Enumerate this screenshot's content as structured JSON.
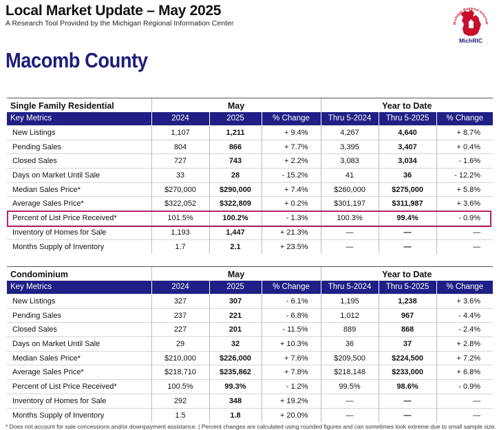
{
  "header": {
    "title": "Local Market Update – May 2025",
    "subtitle": "A Research Tool Provided by the Michigan Regional Information Center",
    "logo_text": "MichRIC",
    "logo_ring_text": "Michigan Regional Information Center"
  },
  "county": "Macomb County",
  "colors": {
    "header_blue": "#1f1f86",
    "county_blue": "#1d1d7a",
    "logo_red": "#c8102e",
    "highlight": "#b8226a"
  },
  "sfr": {
    "title": "Single Family Residential",
    "group_may": "May",
    "group_ytd": "Year to Date",
    "columns": [
      "Key Metrics",
      "2024",
      "2025",
      "% Change",
      "Thru 5-2024",
      "Thru 5-2025",
      "% Change"
    ],
    "rows": [
      [
        "New Listings",
        "1,107",
        "1,211",
        "+ 9.4%",
        "4,267",
        "4,640",
        "+ 8.7%"
      ],
      [
        "Pending Sales",
        "804",
        "866",
        "+ 7.7%",
        "3,395",
        "3,407",
        "+ 0.4%"
      ],
      [
        "Closed Sales",
        "727",
        "743",
        "+ 2.2%",
        "3,083",
        "3,034",
        "- 1.6%"
      ],
      [
        "Days on Market Until Sale",
        "33",
        "28",
        "- 15.2%",
        "41",
        "36",
        "- 12.2%"
      ],
      [
        "Median Sales Price*",
        "$270,000",
        "$290,000",
        "+ 7.4%",
        "$260,000",
        "$275,000",
        "+ 5.8%"
      ],
      [
        "Average Sales Price*",
        "$322,052",
        "$322,809",
        "+ 0.2%",
        "$301,197",
        "$311,987",
        "+ 3.6%"
      ],
      [
        "Percent of List Price Received*",
        "101.5%",
        "100.2%",
        "- 1.3%",
        "100.3%",
        "99.4%",
        "- 0.9%"
      ],
      [
        "Inventory of Homes for Sale",
        "1,193",
        "1,447",
        "+ 21.3%",
        "—",
        "—",
        "—"
      ],
      [
        "Months Supply of Inventory",
        "1.7",
        "2.1",
        "+ 23.5%",
        "—",
        "—",
        "—"
      ]
    ]
  },
  "condo": {
    "title": "Condominium",
    "group_may": "May",
    "group_ytd": "Year to Date",
    "columns": [
      "Key Metrics",
      "2024",
      "2025",
      "% Change",
      "Thru 5-2024",
      "Thru 5-2025",
      "% Change"
    ],
    "rows": [
      [
        "New Listings",
        "327",
        "307",
        "- 6.1%",
        "1,195",
        "1,238",
        "+ 3.6%"
      ],
      [
        "Pending Sales",
        "237",
        "221",
        "- 6.8%",
        "1,012",
        "967",
        "- 4.4%"
      ],
      [
        "Closed Sales",
        "227",
        "201",
        "- 11.5%",
        "889",
        "868",
        "- 2.4%"
      ],
      [
        "Days on Market Until Sale",
        "29",
        "32",
        "+ 10.3%",
        "36",
        "37",
        "+ 2.8%"
      ],
      [
        "Median Sales Price*",
        "$210,000",
        "$226,000",
        "+ 7.6%",
        "$209,500",
        "$224,500",
        "+ 7.2%"
      ],
      [
        "Average Sales Price*",
        "$218,710",
        "$235,862",
        "+ 7.8%",
        "$218,148",
        "$233,000",
        "+ 6.8%"
      ],
      [
        "Percent of List Price Received*",
        "100.5%",
        "99.3%",
        "- 1.2%",
        "99.5%",
        "98.6%",
        "- 0.9%"
      ],
      [
        "Inventory of Homes for Sale",
        "292",
        "348",
        "+ 19.2%",
        "—",
        "—",
        "—"
      ],
      [
        "Months Supply of Inventory",
        "1.5",
        "1.8",
        "+ 20.0%",
        "—",
        "—",
        "—"
      ]
    ]
  },
  "footnote": "* Does not account for sale concessions and/or downpayment assistance. | Percent changes are calculated using rounded figures and can sometimes look extreme due to small sample size."
}
